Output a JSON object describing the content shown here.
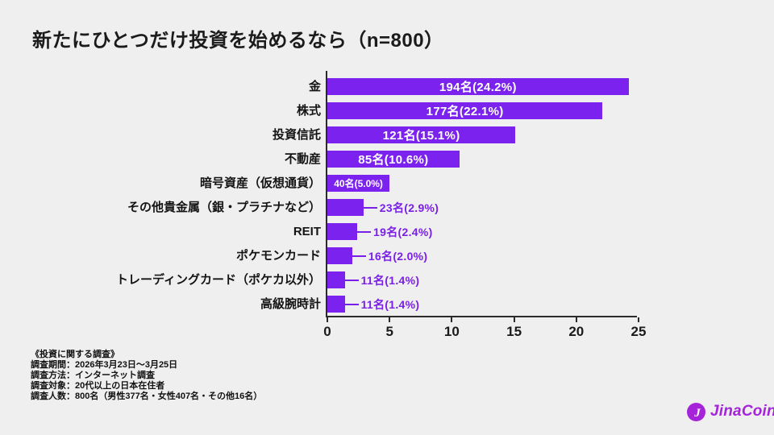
{
  "title": "新たにひとつだけ投資を始めるなら（n=800）",
  "chart_data": {
    "type": "bar",
    "orientation": "horizontal",
    "title": "新たにひとつだけ投資を始めるなら（n=800）",
    "categories": [
      "金",
      "株式",
      "投資信託",
      "不動産",
      "暗号資産（仮想通貨）",
      "その他貴金属（銀・プラチナなど）",
      "REIT",
      "ポケモンカード",
      "トレーディングカード（ポケカ以外）",
      "高級腕時計"
    ],
    "counts": [
      194,
      177,
      121,
      85,
      40,
      23,
      19,
      16,
      11,
      11
    ],
    "percents": [
      24.2,
      22.1,
      15.1,
      10.6,
      5.0,
      2.9,
      2.4,
      2.0,
      1.4,
      1.4
    ],
    "value_labels": [
      "194名(24.2%)",
      "177名(22.1%)",
      "121名(15.1%)",
      "85名(10.6%)",
      "40名(5.0%)",
      "23名(2.9%)",
      "19名(2.4%)",
      "16名(2.0%)",
      "11名(1.4%)",
      "11名(1.4%)"
    ],
    "label_inside": [
      true,
      true,
      true,
      true,
      true,
      false,
      false,
      false,
      false,
      false
    ],
    "xlabel": "",
    "ylabel": "",
    "xlim": [
      0,
      25
    ],
    "xticks": [
      0,
      5,
      10,
      15,
      20,
      25
    ],
    "grid": false,
    "legend": false,
    "bar_color": "#7B22EE",
    "outside_label_color": "#7A1FE6",
    "axis_color": "#2b2b2b",
    "background_color": "#EFEFEF"
  },
  "survey_notes": {
    "heading": "《投資に関する調査》",
    "lines": [
      "調査期間：2026年3月23日〜3月25日",
      "調査方法：インターネット調査",
      "調査対象：20代以上の日本在住者",
      "調査人数：800名（男性377名・女性407名・その他16名）"
    ]
  },
  "logo": {
    "text": "JinaCoin",
    "icon": "jinacoin-coin-icon",
    "color": "#A524DA"
  }
}
